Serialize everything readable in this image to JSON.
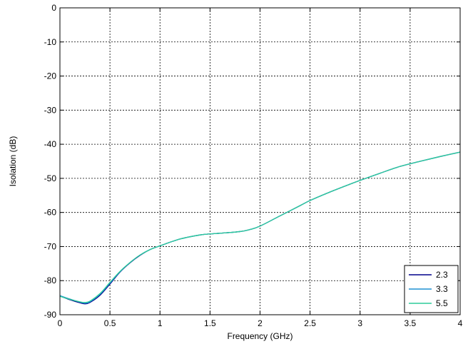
{
  "chart_data": {
    "type": "line",
    "xlabel": "Frequency (GHz)",
    "ylabel": "Isolation (dB)",
    "xlim": [
      0,
      4
    ],
    "ylim": [
      -90,
      0
    ],
    "xticks": [
      0,
      0.5,
      1,
      1.5,
      2,
      2.5,
      3,
      3.5,
      4
    ],
    "xtick_labels": [
      "0",
      "0.5",
      "1",
      "1.5",
      "2",
      "2.5",
      "3",
      "3.5",
      "4"
    ],
    "yticks": [
      0,
      -10,
      -20,
      -30,
      -40,
      -50,
      -60,
      -70,
      -80,
      -90
    ],
    "ytick_labels": [
      "0",
      "-10",
      "-20",
      "-30",
      "-40",
      "-50",
      "-60",
      "-70",
      "-80",
      "-90"
    ],
    "grid": true,
    "legend_position": "bottom-right",
    "series": [
      {
        "name": "2.3",
        "color": "#00008b",
        "x": [
          0,
          0.1,
          0.2,
          0.25,
          0.3,
          0.4,
          0.5,
          0.6,
          0.7,
          0.8,
          0.9,
          1.0,
          1.2,
          1.4,
          1.5,
          1.6,
          1.8,
          1.9,
          2.0,
          2.2,
          2.4,
          2.5,
          2.7,
          2.9,
          3.0,
          3.2,
          3.4,
          3.6,
          3.8,
          4.0
        ],
        "y": [
          -84.5,
          -85.6,
          -86.5,
          -86.8,
          -86.4,
          -84.3,
          -81.0,
          -77.5,
          -74.8,
          -72.6,
          -70.9,
          -69.8,
          -67.8,
          -66.6,
          -66.3,
          -66.1,
          -65.6,
          -65.0,
          -64.0,
          -61.0,
          -58.0,
          -56.5,
          -54.0,
          -51.7,
          -50.6,
          -48.5,
          -46.5,
          -45.0,
          -43.6,
          -42.3
        ]
      },
      {
        "name": "3.3",
        "color": "#1e90d2",
        "x": [
          0,
          0.1,
          0.2,
          0.25,
          0.3,
          0.4,
          0.5,
          0.6,
          0.7,
          0.8,
          0.9,
          1.0,
          1.2,
          1.4,
          1.5,
          1.6,
          1.8,
          1.9,
          2.0,
          2.2,
          2.4,
          2.5,
          2.7,
          2.9,
          3.0,
          3.2,
          3.4,
          3.6,
          3.8,
          4.0
        ],
        "y": [
          -84.4,
          -85.4,
          -86.3,
          -86.6,
          -86.2,
          -84.0,
          -80.7,
          -77.4,
          -74.7,
          -72.5,
          -70.9,
          -69.8,
          -67.8,
          -66.6,
          -66.3,
          -66.1,
          -65.6,
          -65.0,
          -64.0,
          -61.0,
          -58.0,
          -56.5,
          -54.0,
          -51.7,
          -50.6,
          -48.5,
          -46.5,
          -45.0,
          -43.6,
          -42.3
        ]
      },
      {
        "name": "5.5",
        "color": "#2ecc9a",
        "x": [
          0,
          0.1,
          0.2,
          0.25,
          0.3,
          0.4,
          0.5,
          0.6,
          0.7,
          0.8,
          0.9,
          1.0,
          1.2,
          1.4,
          1.5,
          1.6,
          1.8,
          1.9,
          2.0,
          2.2,
          2.4,
          2.5,
          2.7,
          2.9,
          3.0,
          3.2,
          3.4,
          3.6,
          3.8,
          4.0
        ],
        "y": [
          -84.6,
          -85.5,
          -86.2,
          -86.4,
          -86.0,
          -83.8,
          -80.5,
          -77.3,
          -74.7,
          -72.5,
          -70.9,
          -69.8,
          -67.8,
          -66.6,
          -66.3,
          -66.1,
          -65.6,
          -65.0,
          -64.0,
          -61.0,
          -58.0,
          -56.5,
          -54.0,
          -51.7,
          -50.6,
          -48.5,
          -46.5,
          -45.0,
          -43.6,
          -42.3
        ]
      }
    ]
  }
}
